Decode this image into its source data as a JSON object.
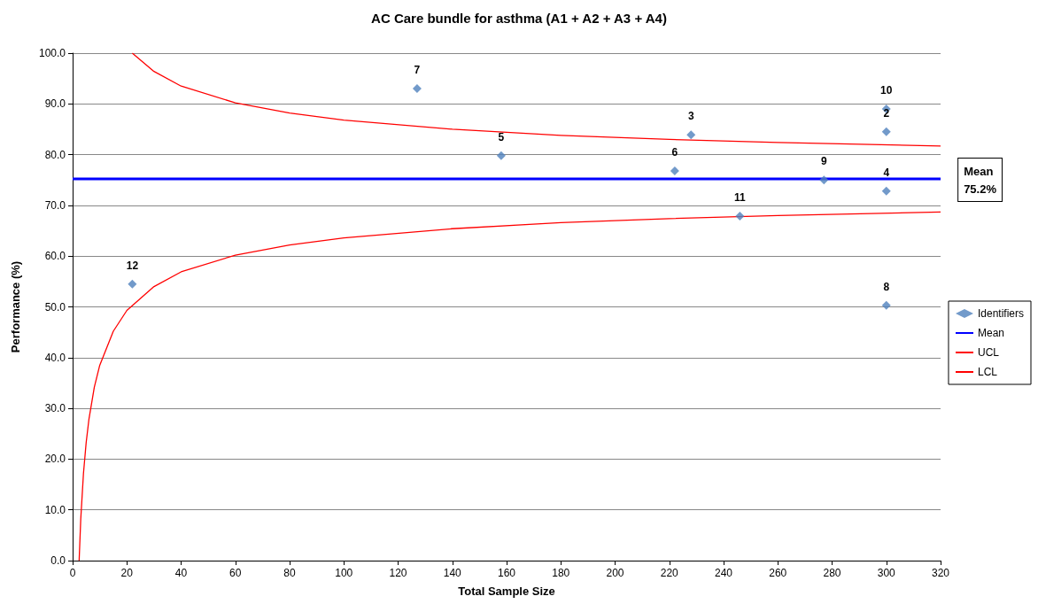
{
  "chart_data": {
    "type": "scatter",
    "title": "AC Care bundle for asthma (A1 + A2 + A3 + A4)",
    "xlabel": "Total Sample Size",
    "ylabel": "Performance (%)",
    "xlim": [
      0,
      320
    ],
    "xticks": [
      0,
      20,
      40,
      60,
      80,
      100,
      120,
      140,
      160,
      180,
      200,
      220,
      240,
      260,
      280,
      300,
      320
    ],
    "ylim": [
      0,
      100
    ],
    "yticks": [
      {
        "value": 0,
        "label": "0.0"
      },
      {
        "value": 10,
        "label": "10.0"
      },
      {
        "value": 20,
        "label": "20.0"
      },
      {
        "value": 30,
        "label": "30.0"
      },
      {
        "value": 40,
        "label": "40.0"
      },
      {
        "value": 50,
        "label": "50.0"
      },
      {
        "value": 60,
        "label": "60.0"
      },
      {
        "value": 70,
        "label": "70.0"
      },
      {
        "value": 80,
        "label": "80.0"
      },
      {
        "value": 90,
        "label": "90.0"
      },
      {
        "value": 100,
        "label": "100.0"
      }
    ],
    "grid": "y",
    "legend": "right",
    "annotations": [
      "Mean\n75.2%",
      {
        "text": "12",
        "x": 22,
        "y": 54.5
      },
      {
        "text": "7",
        "x": 127,
        "y": 93.0
      },
      {
        "text": "5",
        "x": 158,
        "y": 79.8
      },
      {
        "text": "3",
        "x": 228,
        "y": 83.9
      },
      {
        "text": "6",
        "x": 222,
        "y": 76.8
      },
      {
        "text": "10",
        "x": 300,
        "y": 89.0
      },
      {
        "text": "2",
        "x": 300,
        "y": 84.5
      },
      {
        "text": "9",
        "x": 277,
        "y": 75.0
      },
      {
        "text": "4",
        "x": 300,
        "y": 72.8
      },
      {
        "text": "11",
        "x": 246,
        "y": 67.9
      },
      {
        "text": "8",
        "x": 300,
        "y": 50.3
      }
    ],
    "series": [
      {
        "name": "Identifiers",
        "marker": "diamond",
        "color": "#4f81bd",
        "x": [
          22,
          127,
          158,
          228,
          222,
          300,
          300,
          277,
          300,
          246,
          300
        ],
        "values": [
          54.5,
          93.0,
          79.8,
          83.9,
          76.8,
          89.0,
          84.5,
          75.0,
          72.8,
          67.9,
          50.3
        ]
      },
      {
        "name": "Mean",
        "type": "line",
        "color": "#0000ff",
        "x": [
          0,
          320
        ],
        "values": [
          75.2,
          75.2
        ]
      },
      {
        "name": "UCL",
        "type": "line",
        "color": "#ff0000",
        "x": [
          22,
          30,
          40,
          60,
          80,
          100,
          140,
          180,
          220,
          260,
          320
        ],
        "values": [
          100,
          96.4,
          93.5,
          90.2,
          88.2,
          86.8,
          85.0,
          83.8,
          83.0,
          82.4,
          81.7
        ]
      },
      {
        "name": "LCL",
        "type": "line",
        "color": "#ff0000",
        "x": [
          2.4,
          3,
          4,
          5,
          6,
          8,
          10,
          15,
          20,
          30,
          40,
          60,
          80,
          100,
          140,
          180,
          220,
          260,
          320
        ],
        "values": [
          0,
          8.2,
          17.2,
          23.3,
          27.8,
          34.2,
          38.5,
          45.2,
          49.3,
          54.0,
          56.9,
          60.2,
          62.2,
          63.6,
          65.4,
          66.6,
          67.4,
          68.0,
          68.7
        ]
      }
    ]
  }
}
